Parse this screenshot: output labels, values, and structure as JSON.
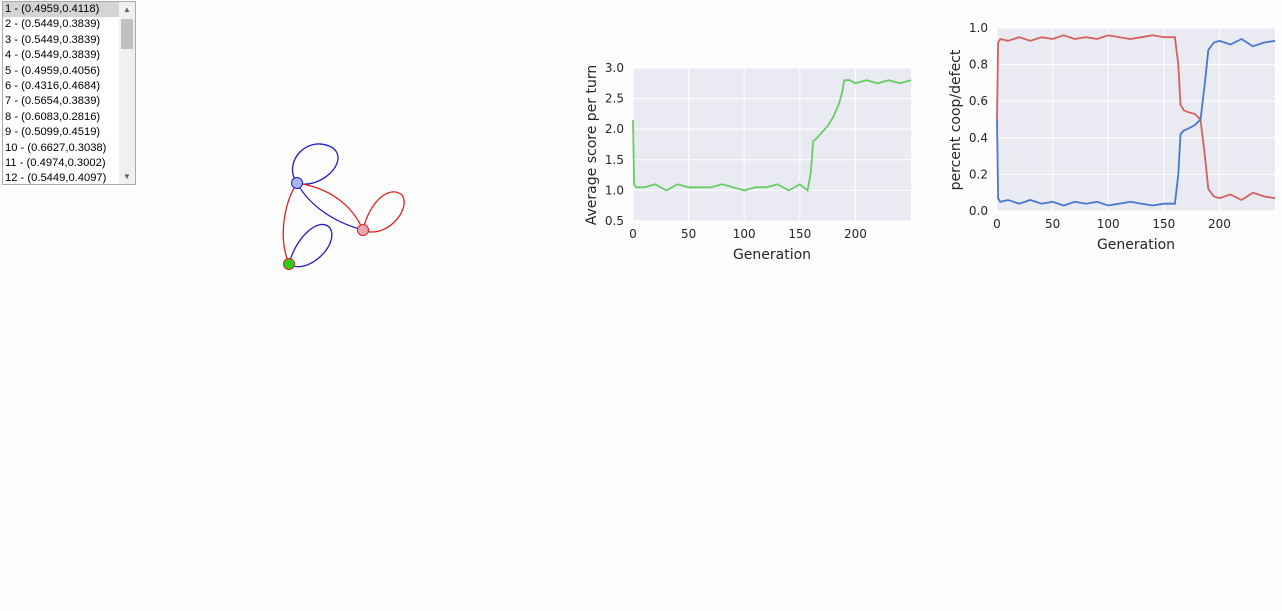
{
  "list": {
    "items": [
      "1 - (0.4959,0.4118)",
      "2 - (0.5449,0.3839)",
      "3 - (0.5449,0.3839)",
      "4 - (0.5449,0.3839)",
      "5 - (0.4959,0.4056)",
      "6 - (0.4316,0.4684)",
      "7 - (0.5654,0.3839)",
      "8 - (0.6083,0.2816)",
      "9 - (0.5099,0.4519)",
      "10 - (0.6627,0.3038)",
      "11 - (0.4974,0.3002)",
      "12 - (0.5449,0.4097)"
    ],
    "selected_index": 0,
    "scroll_up_icon": "triangle-up-icon",
    "scroll_down_icon": "triangle-down-icon"
  },
  "graph": {
    "node_colors": {
      "green": "#2ecc1a",
      "blue_node": "#a9b8f0",
      "red_node": "#e8a8b0"
    },
    "edge_colors": {
      "blue": "#1f1fcf",
      "red": "#e02020"
    }
  },
  "chart_data": [
    {
      "type": "line",
      "xlabel": "Generation",
      "ylabel": "Average score per turn",
      "xlim": [
        0,
        250
      ],
      "ylim": [
        0.5,
        3.0
      ],
      "xticks": [
        "0",
        "50",
        "100",
        "150",
        "200"
      ],
      "yticks": [
        "0.5",
        "1.0",
        "1.5",
        "2.0",
        "2.5",
        "3.0"
      ],
      "grid": true,
      "series": [
        {
          "color": "#6acc65",
          "x": [
            0,
            1,
            3,
            10,
            20,
            30,
            40,
            50,
            60,
            70,
            80,
            90,
            100,
            110,
            120,
            130,
            140,
            150,
            157,
            160,
            162,
            165,
            170,
            175,
            180,
            185,
            188,
            190,
            195,
            200,
            210,
            220,
            230,
            240,
            250
          ],
          "y": [
            2.15,
            1.1,
            1.05,
            1.05,
            1.1,
            1.0,
            1.1,
            1.05,
            1.05,
            1.05,
            1.1,
            1.05,
            1.0,
            1.05,
            1.05,
            1.1,
            1.0,
            1.1,
            1.0,
            1.3,
            1.8,
            1.85,
            1.95,
            2.05,
            2.2,
            2.4,
            2.6,
            2.8,
            2.8,
            2.75,
            2.8,
            2.75,
            2.8,
            2.75,
            2.8
          ]
        }
      ]
    },
    {
      "type": "line",
      "xlabel": "Generation",
      "ylabel": "percent coop/defect",
      "xlim": [
        0,
        250
      ],
      "ylim": [
        0.0,
        1.0
      ],
      "xticks": [
        "0",
        "50",
        "100",
        "150",
        "200"
      ],
      "yticks": [
        "0.0",
        "0.2",
        "0.4",
        "0.6",
        "0.8",
        "1.0"
      ],
      "grid": true,
      "series": [
        {
          "color": "#d65f5f",
          "x": [
            0,
            1,
            3,
            10,
            20,
            30,
            40,
            50,
            60,
            70,
            80,
            90,
            100,
            110,
            120,
            130,
            140,
            150,
            160,
            163,
            165,
            168,
            172,
            178,
            183,
            187,
            190,
            195,
            200,
            210,
            220,
            230,
            240,
            250
          ],
          "y": [
            0.5,
            0.92,
            0.94,
            0.93,
            0.95,
            0.93,
            0.95,
            0.94,
            0.96,
            0.94,
            0.95,
            0.94,
            0.96,
            0.95,
            0.94,
            0.95,
            0.96,
            0.95,
            0.95,
            0.8,
            0.58,
            0.55,
            0.54,
            0.53,
            0.5,
            0.3,
            0.12,
            0.08,
            0.07,
            0.09,
            0.06,
            0.1,
            0.08,
            0.07
          ]
        },
        {
          "color": "#4878cf",
          "x": [
            0,
            1,
            3,
            10,
            20,
            30,
            40,
            50,
            60,
            70,
            80,
            90,
            100,
            110,
            120,
            130,
            140,
            150,
            160,
            163,
            165,
            168,
            172,
            178,
            183,
            187,
            190,
            195,
            200,
            210,
            220,
            230,
            240,
            250
          ],
          "y": [
            0.5,
            0.07,
            0.05,
            0.06,
            0.04,
            0.06,
            0.04,
            0.05,
            0.03,
            0.05,
            0.04,
            0.05,
            0.03,
            0.04,
            0.05,
            0.04,
            0.03,
            0.04,
            0.04,
            0.2,
            0.42,
            0.44,
            0.45,
            0.47,
            0.5,
            0.7,
            0.88,
            0.92,
            0.93,
            0.91,
            0.94,
            0.9,
            0.92,
            0.93
          ]
        }
      ]
    }
  ]
}
